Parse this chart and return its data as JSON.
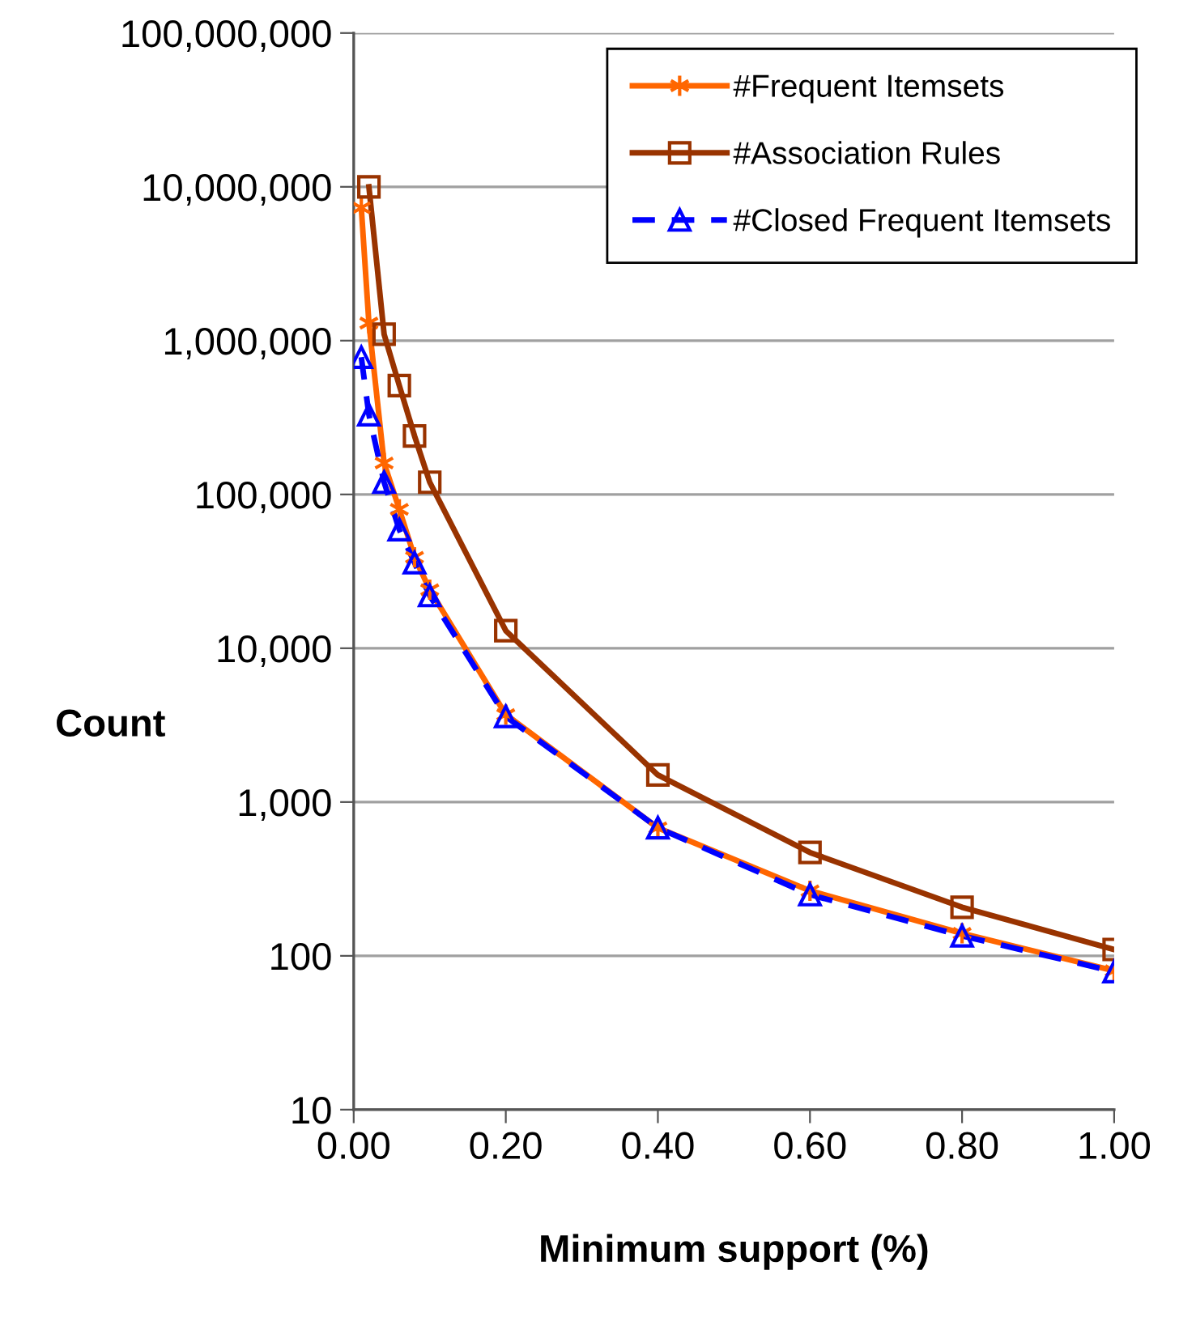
{
  "chart_data": {
    "type": "line",
    "xlabel": "Minimum support (%)",
    "ylabel": "Count",
    "log": "y",
    "grid": "y",
    "legend": "top right",
    "xlim": [
      0,
      1
    ],
    "xticks": [
      {
        "value": 0,
        "label": "0.00"
      },
      {
        "value": 0.2,
        "label": "0.20"
      },
      {
        "value": 0.4,
        "label": "0.40"
      },
      {
        "value": 0.6,
        "label": "0.60"
      },
      {
        "value": 0.8,
        "label": "0.80"
      },
      {
        "value": 1,
        "label": "1.00"
      }
    ],
    "ylim": [
      10,
      100000000
    ],
    "yticks": [
      10,
      100,
      {
        "value": 1000,
        "label": "1,000"
      },
      {
        "value": 10000,
        "label": "10,000"
      },
      {
        "value": 100000,
        "label": "100,000"
      },
      {
        "value": 1000000,
        "label": "1,000,000"
      },
      {
        "value": 10000000,
        "label": "10,000,000"
      },
      {
        "value": 100000000,
        "label": "100,000,000"
      }
    ],
    "series": [
      {
        "name": "#Frequent Itemsets",
        "color": "#ff6600",
        "marker": "cross",
        "line_style": "solid",
        "x": [
          0.01,
          0.02,
          0.04,
          0.06,
          0.08,
          0.1,
          0.2,
          0.4,
          0.6,
          0.8,
          1.0
        ],
        "values": [
          7300000,
          1300000,
          160000,
          80000,
          39000,
          24000,
          3700,
          680,
          265,
          140,
          80
        ]
      },
      {
        "name": "#Association Rules",
        "color": "#993300",
        "marker": "square",
        "line_style": "solid",
        "x": [
          0.02,
          0.04,
          0.06,
          0.08,
          0.1,
          0.2,
          0.4,
          0.6,
          0.8,
          1.0
        ],
        "values": [
          10000000,
          1100000,
          510000,
          240000,
          120000,
          13000,
          1500,
          470,
          207,
          110
        ]
      },
      {
        "name": "#Closed Frequent Itemsets",
        "color": "#0000ff",
        "marker": "triangle",
        "line_style": "dashed",
        "x": [
          0.01,
          0.02,
          0.04,
          0.06,
          0.08,
          0.1,
          0.2,
          0.4,
          0.6,
          0.8,
          1.0
        ],
        "values": [
          780000,
          330000,
          120000,
          59000,
          36000,
          22000,
          3600,
          680,
          250,
          135,
          79
        ]
      }
    ]
  }
}
